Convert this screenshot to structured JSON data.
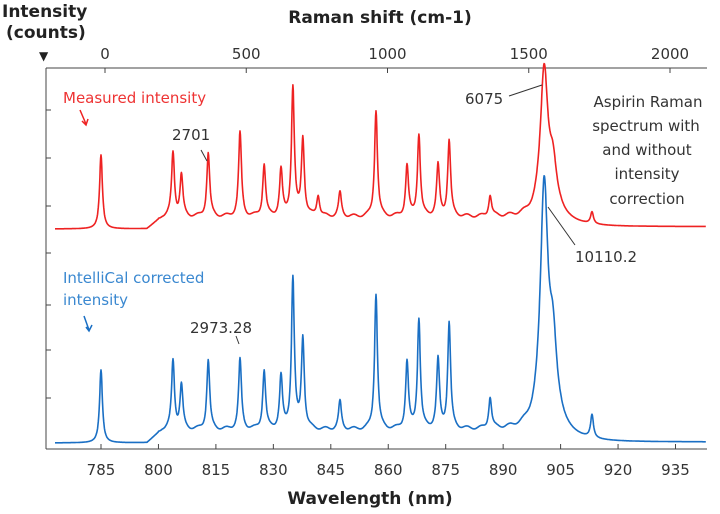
{
  "chart_data": {
    "type": "line",
    "ylabel": "Intensity (counts)",
    "xlabel": "Wavelength (nm)",
    "x2label": "Raman shift (cm-1)",
    "x_ticks": [
      "785",
      "800",
      "815",
      "830",
      "845",
      "860",
      "875",
      "890",
      "905",
      "920",
      "935"
    ],
    "x2_ticks": [
      "0",
      "500",
      "1000",
      "1500",
      "2000"
    ],
    "xlim": [
      773,
      943
    ],
    "grid": false,
    "series": [
      {
        "name": "Measured intensity",
        "color": "#ee2222",
        "peaks_nm_counts": [
          [
            785,
            3120
          ],
          [
            803.8,
            2700
          ],
          [
            806,
            1730
          ],
          [
            813,
            2701
          ],
          [
            821.3,
            3540
          ],
          [
            827.6,
            2200
          ],
          [
            832,
            1940
          ],
          [
            835.1,
            5440
          ],
          [
            837.7,
            3290
          ],
          [
            841.7,
            890
          ],
          [
            847.4,
            1010
          ],
          [
            856.8,
            4510
          ],
          [
            864.9,
            2150
          ],
          [
            868,
            3460
          ],
          [
            873,
            2150
          ],
          [
            875.9,
            3200
          ],
          [
            886.6,
            890
          ],
          [
            900.7,
            6075
          ],
          [
            903,
            1860
          ],
          [
            913.2,
            500
          ]
        ]
      },
      {
        "name": "IntelliCal corrected intensity",
        "color": "#1a6fc4",
        "peaks_nm_counts": [
          [
            785,
            3100
          ],
          [
            803.8,
            2930
          ],
          [
            806,
            1870
          ],
          [
            813,
            2970
          ],
          [
            821.3,
            2973.28
          ],
          [
            827.6,
            2510
          ],
          [
            832,
            2210
          ],
          [
            835.1,
            6410
          ],
          [
            837.7,
            3870
          ],
          [
            847.4,
            1190
          ],
          [
            856.8,
            5780
          ],
          [
            864.9,
            2850
          ],
          [
            868,
            4670
          ],
          [
            873,
            2930
          ],
          [
            875.9,
            4500
          ],
          [
            886.6,
            1320
          ],
          [
            900.7,
            10110.2
          ],
          [
            903,
            3180
          ],
          [
            913.2,
            980
          ]
        ]
      }
    ],
    "annotations": {
      "red_peak": "6075",
      "red_label": "2701",
      "blue_peak": "10110.2",
      "blue_label": "2973.28",
      "description": [
        "Aspirin Raman",
        "spectrum with",
        "and without",
        "intensity",
        "correction"
      ]
    },
    "series_labels": {
      "measured": "Measured intensity",
      "corrected": [
        "IntelliCal corrected",
        "intensity"
      ]
    },
    "axis_marker": "▼"
  }
}
